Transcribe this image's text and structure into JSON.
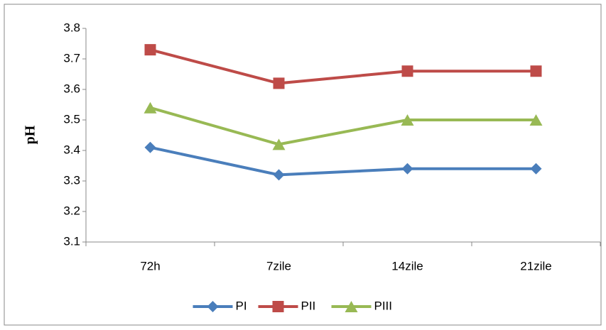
{
  "chart_data": {
    "type": "line",
    "y_label": "pH",
    "categories": [
      "72h",
      "7zile",
      "14zile",
      "21zile"
    ],
    "series": [
      {
        "name": "PI",
        "color": "#4a7ebb",
        "marker": "diamond",
        "values": [
          3.41,
          3.32,
          3.34,
          3.34
        ]
      },
      {
        "name": "PII",
        "color": "#be4b48",
        "marker": "square",
        "values": [
          3.73,
          3.62,
          3.66,
          3.66
        ]
      },
      {
        "name": "PIII",
        "color": "#98b954",
        "marker": "triangle",
        "values": [
          3.54,
          3.42,
          3.5,
          3.5
        ]
      }
    ],
    "ylim": [
      3.1,
      3.8
    ],
    "yticks": [
      3.1,
      3.2,
      3.3,
      3.4,
      3.5,
      3.6,
      3.7,
      3.8
    ],
    "grid": false,
    "legend": "bottom"
  }
}
